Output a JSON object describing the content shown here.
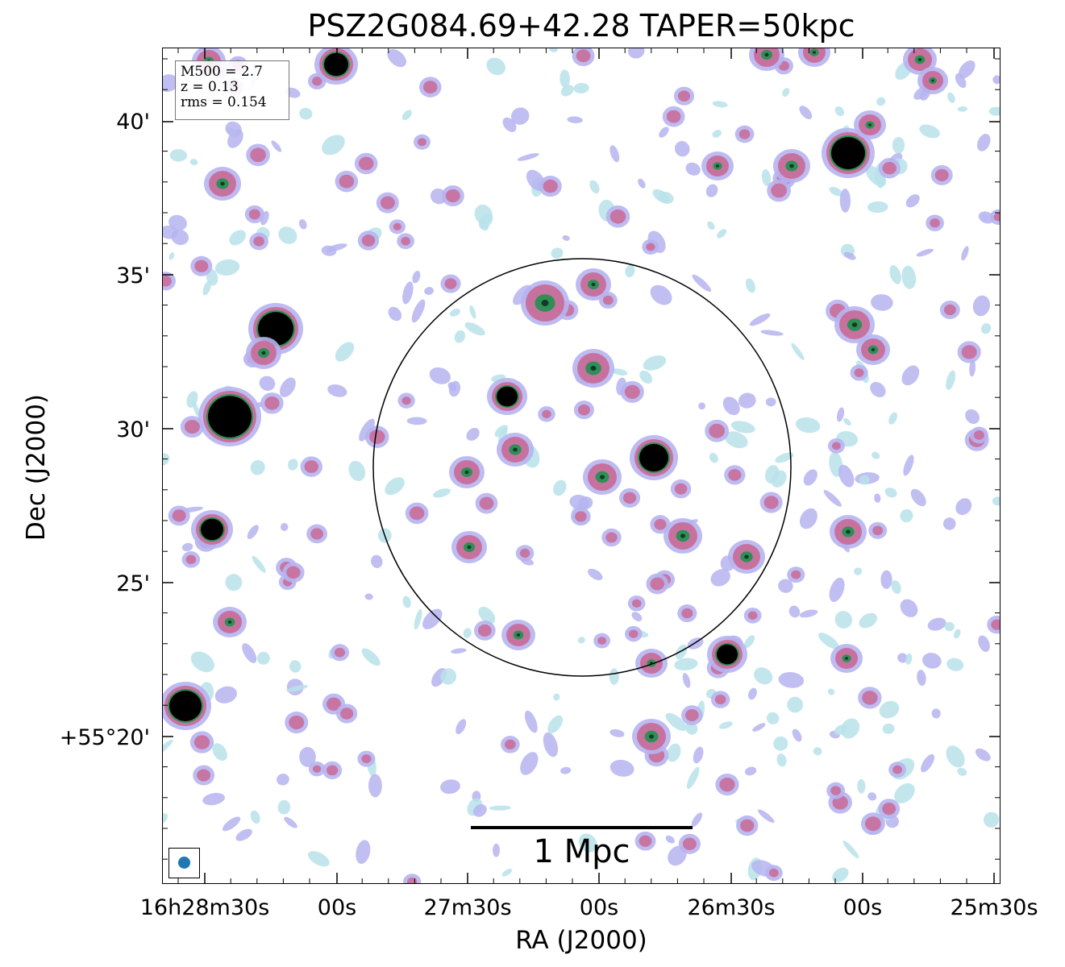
{
  "title": "PSZ2G084.69+42.28 TAPER=50kpc",
  "xlabel": "RA (J2000)",
  "ylabel": "Dec (J2000)",
  "dec_tick_labels": [
    "40'",
    "35'",
    "30'",
    "25'",
    "+55°20'"
  ],
  "ra_tick_labels": [
    "16h28m30s",
    "00s",
    "27m30s",
    "00s",
    "26m30s",
    "00s",
    "25m30s"
  ],
  "info_box": {
    "m500": "M500 = 2.7",
    "z": "z = 0.13",
    "rms": "rms = 0.154"
  },
  "scalebar_label": "1 Mpc",
  "colors": {
    "noise_low": "#b9e2ea",
    "noise_mid": "#b6b4f0",
    "pink": "#c7729e",
    "green": "#2f8f55",
    "source_core": "#000000",
    "beam": "#1f77b4",
    "circle": "#000000"
  },
  "icons": {
    "beam": "beam-ellipse-icon"
  }
}
